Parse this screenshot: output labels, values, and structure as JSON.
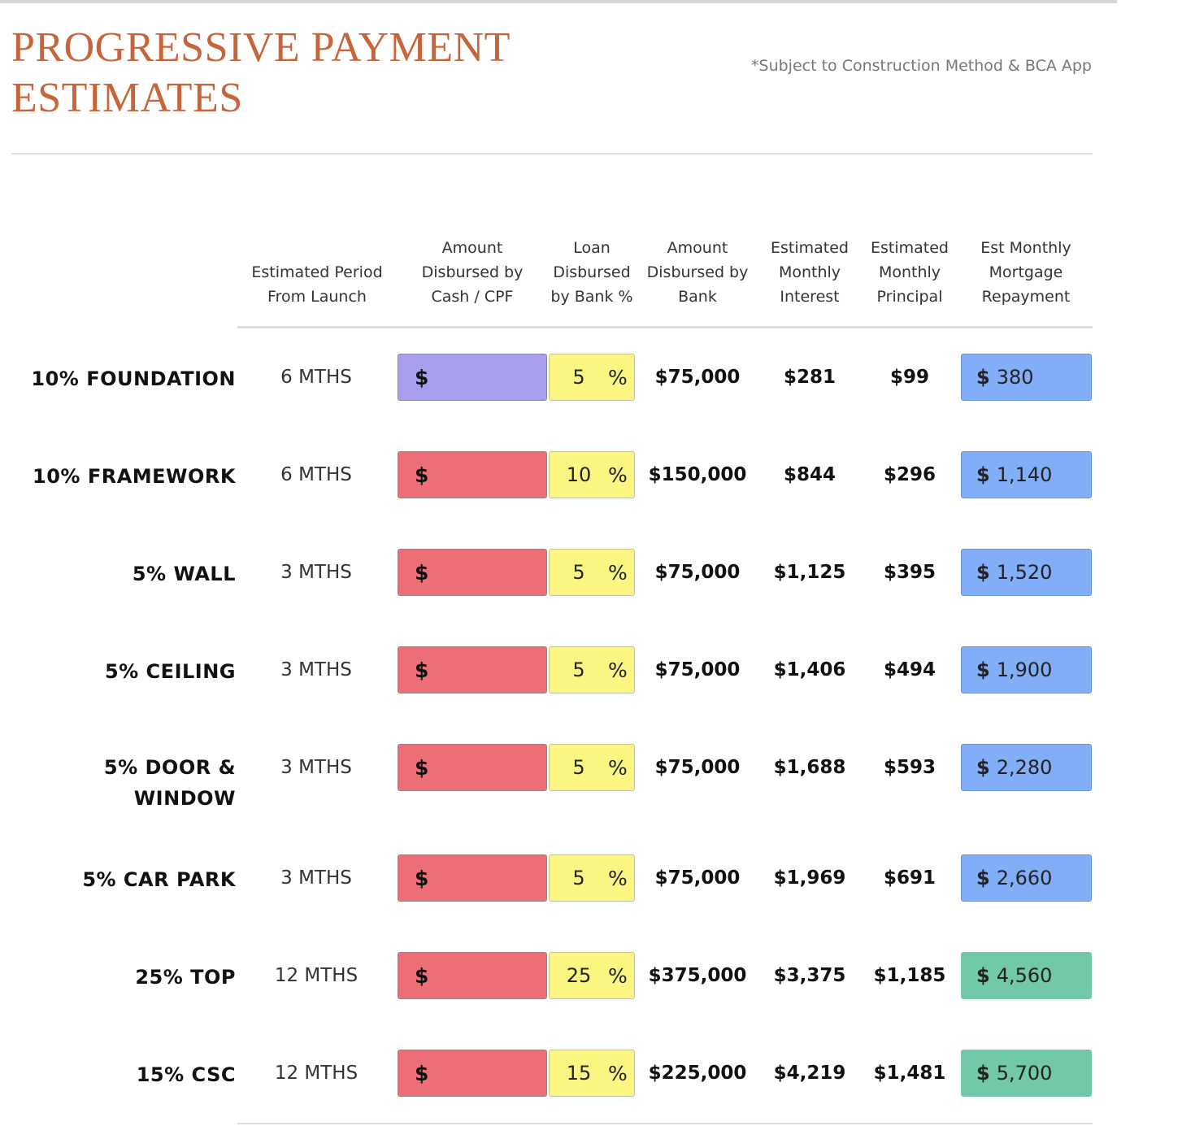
{
  "title": {
    "line1": "PROGRESSIVE PAYMENT",
    "line2": "ESTIMATES"
  },
  "disclaimer": "*Subject to Construction Method & BCA App",
  "columns": {
    "period": [
      "Estimated Period",
      "From Launch"
    ],
    "cash": [
      "Amount",
      "Disbursed by",
      "Cash / CPF"
    ],
    "loan_pct": [
      "Loan",
      "Disbursed",
      "by Bank %"
    ],
    "amount_bank": [
      "Amount",
      "Disbursed by",
      "Bank"
    ],
    "interest": [
      "Estimated",
      "Monthly",
      "Interest"
    ],
    "principal": [
      "Estimated",
      "Monthly",
      "Principal"
    ],
    "repayment": [
      "Est Monthly",
      "Mortgage",
      "Repayment"
    ]
  },
  "currency_symbol": "$",
  "percent_symbol": "%",
  "colors": {
    "title": "#c8643a",
    "cash_first": "#a89ef0",
    "cash_other": "#ec6f78",
    "loan_pct": "#fbf582",
    "repay_blue": "#82aef7",
    "repay_green": "#72c9a6"
  },
  "rows": [
    {
      "stage": "10% FOUNDATION",
      "period": "6 MTHS",
      "cash_color": "#a89ef0",
      "loan_pct": "5",
      "amount_bank": "$75,000",
      "interest": "$281",
      "principal": "$99",
      "repayment": "380",
      "repay_color": "#82aef7"
    },
    {
      "stage": "10% FRAMEWORK",
      "period": "6 MTHS",
      "cash_color": "#ec6f78",
      "loan_pct": "10",
      "amount_bank": "$150,000",
      "interest": "$844",
      "principal": "$296",
      "repayment": "1,140",
      "repay_color": "#82aef7"
    },
    {
      "stage": "5% WALL",
      "period": "3 MTHS",
      "cash_color": "#ec6f78",
      "loan_pct": "5",
      "amount_bank": "$75,000",
      "interest": "$1,125",
      "principal": "$395",
      "repayment": "1,520",
      "repay_color": "#82aef7"
    },
    {
      "stage": "5% CEILING",
      "period": "3 MTHS",
      "cash_color": "#ec6f78",
      "loan_pct": "5",
      "amount_bank": "$75,000",
      "interest": "$1,406",
      "principal": "$494",
      "repayment": "1,900",
      "repay_color": "#82aef7"
    },
    {
      "stage": "5% DOOR & WINDOW",
      "period": "3 MTHS",
      "cash_color": "#ec6f78",
      "loan_pct": "5",
      "amount_bank": "$75,000",
      "interest": "$1,688",
      "principal": "$593",
      "repayment": "2,280",
      "repay_color": "#82aef7"
    },
    {
      "stage": "5% CAR PARK",
      "period": "3 MTHS",
      "cash_color": "#ec6f78",
      "loan_pct": "5",
      "amount_bank": "$75,000",
      "interest": "$1,969",
      "principal": "$691",
      "repayment": "2,660",
      "repay_color": "#82aef7"
    },
    {
      "stage": "25% TOP",
      "period": "12 MTHS",
      "cash_color": "#ec6f78",
      "loan_pct": "25",
      "amount_bank": "$375,000",
      "interest": "$3,375",
      "principal": "$1,185",
      "repayment": "4,560",
      "repay_color": "#72c9a6"
    },
    {
      "stage": "15% CSC",
      "period": "12 MTHS",
      "cash_color": "#ec6f78",
      "loan_pct": "15",
      "amount_bank": "$225,000",
      "interest": "$4,219",
      "principal": "$1,481",
      "repayment": "5,700",
      "repay_color": "#72c9a6"
    }
  ]
}
